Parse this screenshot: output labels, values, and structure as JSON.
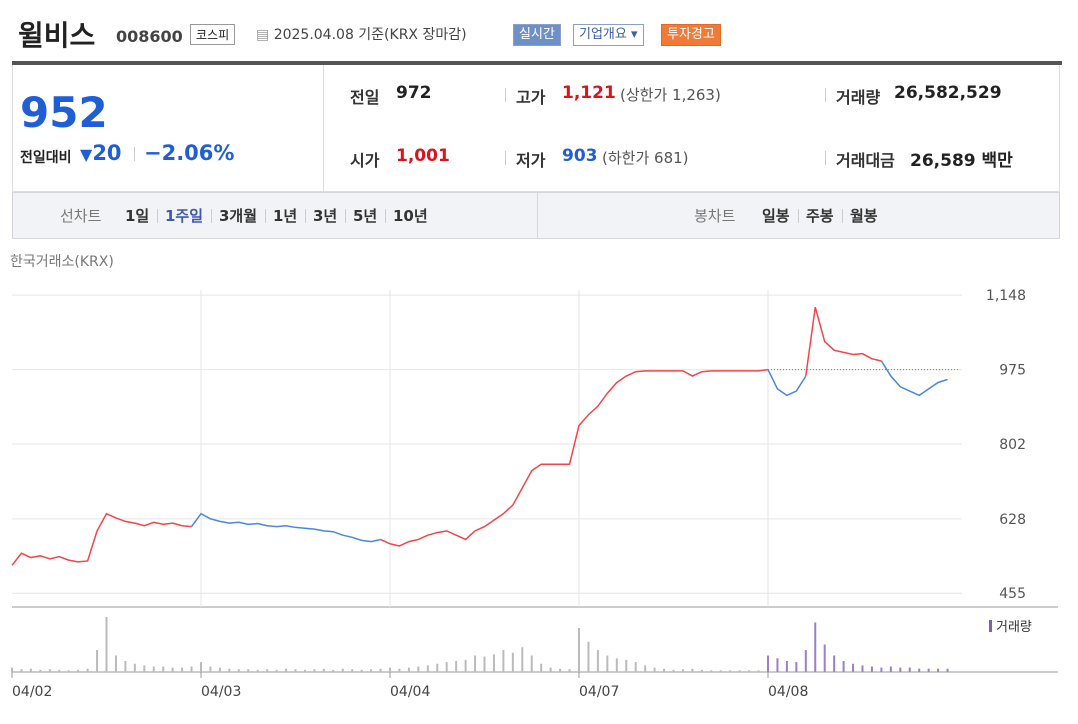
{
  "header": {
    "name": "윌비스",
    "code": "008600",
    "market": "코스피",
    "date": "2025.04.08 기준(KRX 장마감)",
    "buttons": [
      "실시간",
      "기업개요",
      "투자경고"
    ]
  },
  "quote": {
    "price": "952",
    "change_label": "전일대비",
    "change": "20",
    "change_pct": "−2.06%",
    "rows": [
      [
        {
          "label": "전일",
          "value": "972"
        },
        {
          "label": "고가",
          "value": "1,121",
          "note": "(상한가 1,263)"
        },
        {
          "label": "거래량",
          "value": "26,582,529"
        }
      ],
      [
        {
          "label": "시가",
          "value": "1,001"
        },
        {
          "label": "저가",
          "value": "903",
          "note": "(하한가 681)"
        },
        {
          "label": "거래대금",
          "value": "26,589 백만"
        }
      ]
    ]
  },
  "tabs": {
    "line_label": "선차트",
    "line": [
      "1일",
      "1주일",
      "3개월",
      "1년",
      "3년",
      "5년",
      "10년"
    ],
    "candle_label": "봉차트",
    "candle": [
      "일봉",
      "주봉",
      "월봉"
    ]
  },
  "chart_data": {
    "type": "line",
    "source": "한국거래소(KRX)",
    "volume_label": "거래량",
    "categories": [
      "04/02",
      null,
      null,
      null,
      null,
      null,
      null,
      null,
      null,
      null,
      null,
      null,
      null,
      null,
      null,
      null,
      null,
      null,
      null,
      null,
      "04/03",
      null,
      null,
      null,
      null,
      null,
      null,
      null,
      null,
      null,
      null,
      null,
      null,
      null,
      null,
      null,
      null,
      null,
      null,
      null,
      "04/04",
      null,
      null,
      null,
      null,
      null,
      null,
      null,
      null,
      null,
      null,
      null,
      null,
      null,
      null,
      null,
      null,
      null,
      null,
      null,
      "04/07",
      null,
      null,
      null,
      null,
      null,
      null,
      null,
      null,
      null,
      null,
      null,
      null,
      null,
      null,
      null,
      null,
      null,
      null,
      null,
      "04/08",
      null,
      null,
      null,
      null,
      null,
      null,
      null,
      null,
      null,
      null,
      null,
      null,
      null,
      null,
      null,
      null,
      null,
      null,
      null
    ],
    "series": [
      {
        "values": [
          520,
          548,
          538,
          542,
          535,
          540,
          532,
          528,
          530,
          600,
          640,
          630,
          622,
          618,
          612,
          620,
          615,
          618,
          612,
          610,
          640,
          628,
          622,
          618,
          620,
          615,
          617,
          612,
          610,
          612,
          608,
          606,
          604,
          600,
          598,
          590,
          585,
          578,
          575,
          580,
          570,
          565,
          575,
          580,
          590,
          596,
          600,
          590,
          580,
          600,
          610,
          625,
          640,
          660,
          700,
          740,
          755,
          755,
          755,
          755,
          845,
          870,
          890,
          920,
          945,
          960,
          970,
          972,
          972,
          972,
          972,
          972,
          960,
          970,
          972,
          972,
          972,
          972,
          972,
          972,
          975,
          930,
          915,
          925,
          960,
          1120,
          1040,
          1020,
          1015,
          1010,
          1012,
          1000,
          995,
          960,
          935,
          925,
          915,
          930,
          945,
          952
        ],
        "point_colors": [
          "up",
          "up",
          "up",
          "up",
          "up",
          "up",
          "up",
          "up",
          "up",
          "up",
          "up",
          "up",
          "up",
          "up",
          "up",
          "up",
          "up",
          "up",
          "up",
          "up",
          "down",
          "down",
          "down",
          "down",
          "down",
          "down",
          "down",
          "down",
          "down",
          "down",
          "down",
          "down",
          "down",
          "down",
          "down",
          "down",
          "down",
          "down",
          "down",
          "down",
          "up",
          "up",
          "up",
          "up",
          "up",
          "up",
          "up",
          "up",
          "up",
          "up",
          "up",
          "up",
          "up",
          "up",
          "up",
          "up",
          "up",
          "up",
          "up",
          "up",
          "up",
          "up",
          "up",
          "up",
          "up",
          "up",
          "up",
          "up",
          "up",
          "up",
          "up",
          "up",
          "up",
          "up",
          "up",
          "up",
          "up",
          "up",
          "up",
          "up",
          "up",
          "down",
          "down",
          "down",
          "down",
          "up",
          "up",
          "up",
          "up",
          "up",
          "up",
          "up",
          "up",
          "down",
          "down",
          "down",
          "down",
          "down",
          "down",
          "down"
        ]
      }
    ],
    "palette": {
      "up": "#f2444b",
      "down": "#4a86dc"
    },
    "volume": {
      "values": [
        8,
        5,
        6,
        4,
        5,
        4,
        3,
        4,
        6,
        40,
        100,
        30,
        20,
        15,
        12,
        10,
        10,
        8,
        8,
        10,
        18,
        10,
        8,
        6,
        5,
        5,
        4,
        5,
        4,
        6,
        5,
        4,
        5,
        6,
        4,
        6,
        5,
        4,
        5,
        6,
        8,
        6,
        8,
        10,
        12,
        15,
        18,
        20,
        22,
        30,
        28,
        32,
        40,
        35,
        45,
        30,
        15,
        8,
        6,
        5,
        80,
        55,
        40,
        30,
        25,
        22,
        18,
        12,
        8,
        6,
        4,
        5,
        6,
        4,
        3,
        3,
        3,
        3,
        3,
        3,
        30,
        25,
        20,
        18,
        40,
        90,
        50,
        30,
        20,
        15,
        12,
        10,
        8,
        10,
        8,
        8,
        6,
        6,
        6,
        6
      ],
      "color": "#bbbbbb",
      "highlight_color": "#9a7fd0",
      "highlight_from": 80
    },
    "base": 975,
    "ylim": [
      423,
      1160
    ],
    "yticks": [
      {
        "value": 455,
        "label": "455"
      },
      {
        "value": 628,
        "label": "628"
      },
      {
        "value": 802,
        "label": "802"
      },
      {
        "value": 975,
        "label": "975"
      },
      {
        "value": 1148,
        "label": "1,148"
      }
    ],
    "grid": true
  }
}
